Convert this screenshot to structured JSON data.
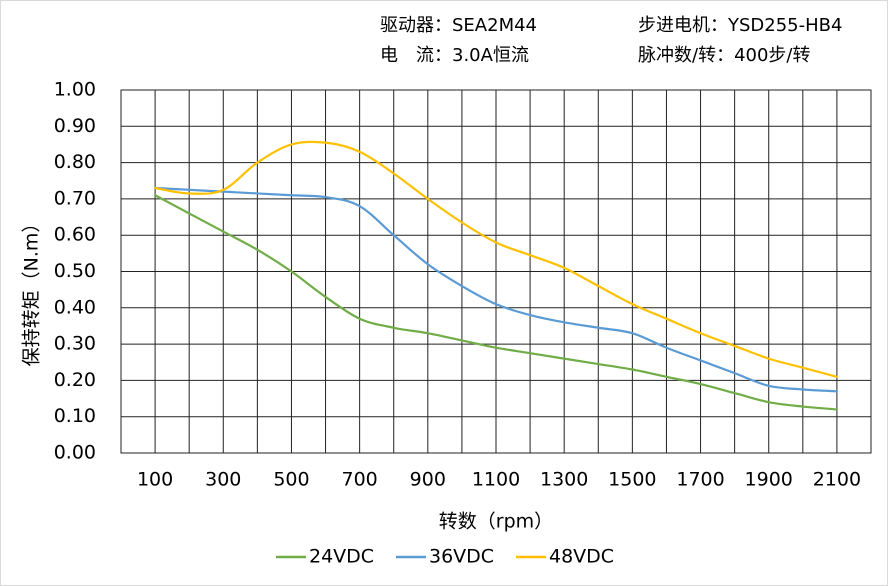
{
  "header": {
    "driver": "驱动器：SEA2M44",
    "motor": "步进电机：YSD255-HB4",
    "current": "电　流：3.0A恒流",
    "pulse": "脉冲数/转：400步/转"
  },
  "chart_data": {
    "type": "line",
    "x_label": "转数（rpm）",
    "y_label": "保持转矩（N.m）",
    "x": [
      100,
      200,
      300,
      400,
      500,
      600,
      700,
      800,
      900,
      1000,
      1100,
      1200,
      1300,
      1400,
      1500,
      1600,
      1700,
      1800,
      1900,
      2000,
      2100
    ],
    "series": [
      {
        "name": "24VDC",
        "color": "#70ad47",
        "values": [
          0.71,
          0.66,
          0.61,
          0.56,
          0.5,
          0.43,
          0.37,
          0.345,
          0.33,
          0.31,
          0.29,
          0.275,
          0.26,
          0.245,
          0.23,
          0.21,
          0.19,
          0.165,
          0.14,
          0.128,
          0.12
        ]
      },
      {
        "name": "36VDC",
        "color": "#5b9bd5",
        "values": [
          0.73,
          0.725,
          0.72,
          0.715,
          0.71,
          0.705,
          0.68,
          0.6,
          0.52,
          0.46,
          0.41,
          0.38,
          0.36,
          0.345,
          0.33,
          0.29,
          0.255,
          0.22,
          0.185,
          0.175,
          0.17
        ]
      },
      {
        "name": "48VDC",
        "color": "#ffc000",
        "values": [
          0.73,
          0.715,
          0.725,
          0.8,
          0.85,
          0.855,
          0.83,
          0.77,
          0.7,
          0.635,
          0.58,
          0.545,
          0.51,
          0.46,
          0.41,
          0.37,
          0.33,
          0.295,
          0.26,
          0.235,
          0.21
        ]
      }
    ],
    "xlim": [
      0,
      2200
    ],
    "xticks": [
      100,
      300,
      500,
      700,
      900,
      1100,
      1300,
      1500,
      1700,
      1900,
      2100
    ],
    "xgrid": [
      0,
      100,
      200,
      300,
      400,
      500,
      600,
      700,
      800,
      900,
      1000,
      1100,
      1200,
      1300,
      1400,
      1500,
      1600,
      1700,
      1800,
      1900,
      2000,
      2100,
      2200
    ],
    "ylim": [
      0,
      1
    ],
    "yticks": [
      {
        "value": 0,
        "label": "0.00"
      },
      {
        "value": 0.1,
        "label": "0.10"
      },
      {
        "value": 0.2,
        "label": "0.20"
      },
      {
        "value": 0.3,
        "label": "0.30"
      },
      {
        "value": 0.4,
        "label": "0.40"
      },
      {
        "value": 0.5,
        "label": "0.50"
      },
      {
        "value": 0.6,
        "label": "0.60"
      },
      {
        "value": 0.7,
        "label": "0.70"
      },
      {
        "value": 0.8,
        "label": "0.80"
      },
      {
        "value": 0.9,
        "label": "0.90"
      },
      {
        "value": 1,
        "label": "1.00"
      }
    ],
    "grid": true,
    "legend": "bottom"
  }
}
